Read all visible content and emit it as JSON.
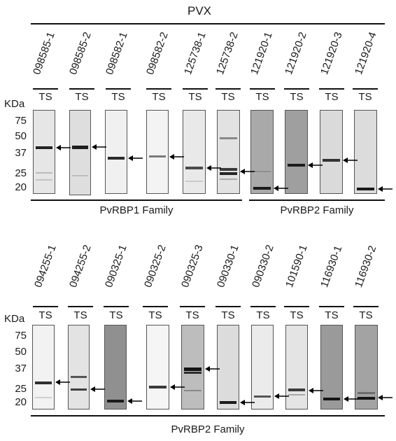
{
  "figure_title": "PVX",
  "ts_label": "TS",
  "kda_unit": "KDa",
  "markers": [
    "75",
    "50",
    "37",
    "25",
    "20"
  ],
  "row1": {
    "samples": [
      "098585-1",
      "098585-2",
      "098582-1",
      "098582-2",
      "125738-1",
      "125738-2",
      "121920-1",
      "121920-2",
      "121920-3",
      "121920-4"
    ],
    "family_left": "PvRBP1 Family",
    "family_right": "PvRBP2 Family"
  },
  "row2": {
    "samples": [
      "094255-1",
      "094255-2",
      "090325-1",
      "090325-2",
      "090325-3",
      "090330-1",
      "090330-2",
      "101590-1",
      "116930-1",
      "116930-2"
    ],
    "family": "PvRBP2 Family"
  }
}
